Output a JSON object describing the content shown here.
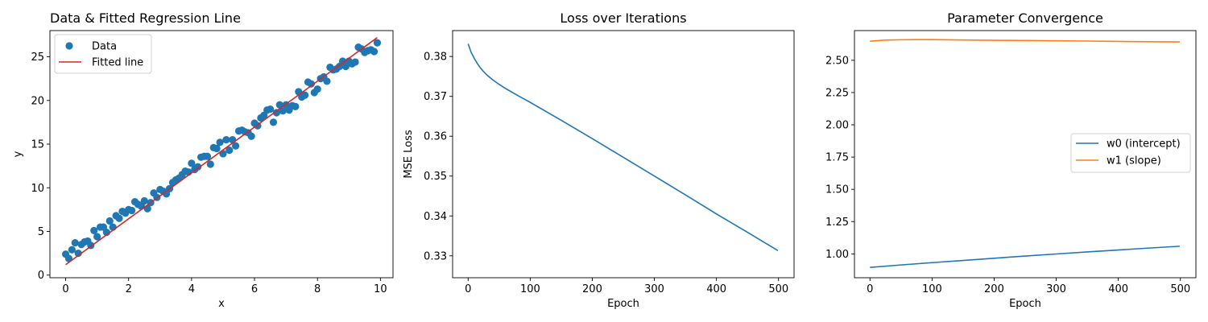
{
  "chart_data": [
    {
      "type": "scatter",
      "title": "Data & Fitted Regression Line",
      "xlabel": "x",
      "ylabel": "y",
      "xlim": [
        -0.5,
        10.4
      ],
      "ylim": [
        -0.3,
        28.0
      ],
      "xticks": [
        0,
        2,
        4,
        6,
        8,
        10
      ],
      "yticks": [
        0,
        5,
        10,
        15,
        20,
        25
      ],
      "legend_position": "upper-left",
      "colors": {
        "scatter": "#1f77b4",
        "line": "#d62728"
      },
      "series": [
        {
          "name": "Data",
          "kind": "scatter",
          "x": [
            0.0,
            0.1,
            0.2,
            0.3,
            0.4,
            0.5,
            0.6,
            0.7,
            0.8,
            0.9,
            1.0,
            1.1,
            1.2,
            1.3,
            1.4,
            1.5,
            1.6,
            1.7,
            1.8,
            1.9,
            2.0,
            2.1,
            2.2,
            2.3,
            2.4,
            2.5,
            2.6,
            2.7,
            2.8,
            2.9,
            3.0,
            3.1,
            3.2,
            3.3,
            3.4,
            3.5,
            3.6,
            3.7,
            3.8,
            3.9,
            4.0,
            4.1,
            4.2,
            4.3,
            4.4,
            4.5,
            4.6,
            4.7,
            4.8,
            4.9,
            5.0,
            5.1,
            5.2,
            5.3,
            5.4,
            5.5,
            5.6,
            5.7,
            5.8,
            5.9,
            6.0,
            6.1,
            6.2,
            6.3,
            6.4,
            6.5,
            6.6,
            6.7,
            6.8,
            6.9,
            7.0,
            7.1,
            7.2,
            7.3,
            7.4,
            7.5,
            7.6,
            7.7,
            7.8,
            7.9,
            8.0,
            8.1,
            8.2,
            8.3,
            8.4,
            8.5,
            8.6,
            8.7,
            8.8,
            8.9,
            9.0,
            9.1,
            9.2,
            9.3,
            9.4,
            9.5,
            9.6,
            9.7,
            9.8,
            9.9
          ],
          "y": [
            2.4,
            1.9,
            2.9,
            3.7,
            2.5,
            3.5,
            3.8,
            3.9,
            3.4,
            5.1,
            4.4,
            5.5,
            5.5,
            4.9,
            6.2,
            5.5,
            6.8,
            6.5,
            7.3,
            7.1,
            7.5,
            7.4,
            8.4,
            8.1,
            7.9,
            8.5,
            7.6,
            8.3,
            9.4,
            8.9,
            9.8,
            9.6,
            9.3,
            9.9,
            10.6,
            10.9,
            11.1,
            11.5,
            11.9,
            11.8,
            12.8,
            12.1,
            12.4,
            13.5,
            13.6,
            13.6,
            12.7,
            14.6,
            14.5,
            15.2,
            13.9,
            15.5,
            14.3,
            15.5,
            14.8,
            16.5,
            16.6,
            16.4,
            16.3,
            15.9,
            17.4,
            17.1,
            18.0,
            18.3,
            18.9,
            19.0,
            17.5,
            18.6,
            19.5,
            18.8,
            19.5,
            18.9,
            19.4,
            19.3,
            21.0,
            20.4,
            20.6,
            22.1,
            21.9,
            20.9,
            21.3,
            22.5,
            22.7,
            22.2,
            23.8,
            23.5,
            23.6,
            23.9,
            24.5,
            23.9,
            24.5,
            24.2,
            24.4,
            26.1,
            25.9,
            25.5,
            25.7,
            25.8,
            25.6,
            26.6
          ]
        },
        {
          "name": "Fitted line",
          "kind": "line",
          "x": [
            0.0,
            9.9
          ],
          "y": [
            1.2,
            27.2
          ]
        }
      ]
    },
    {
      "type": "line",
      "title": "Loss over Iterations",
      "xlabel": "Epoch",
      "ylabel": "MSE Loss",
      "xlim": [
        -25,
        525
      ],
      "ylim": [
        0.3245,
        0.3865
      ],
      "xticks": [
        0,
        100,
        200,
        300,
        400,
        500
      ],
      "yticks": [
        0.33,
        0.34,
        0.35,
        0.36,
        0.37,
        0.38
      ],
      "colors": {
        "line": "#1f77b4"
      },
      "series": [
        {
          "kind": "line",
          "x": [
            0,
            5,
            10,
            15,
            20,
            25,
            30,
            40,
            50,
            60,
            70,
            80,
            100,
            150,
            200,
            250,
            300,
            350,
            400,
            450,
            499
          ],
          "y": [
            0.3832,
            0.381,
            0.3795,
            0.3782,
            0.3771,
            0.3762,
            0.3754,
            0.3741,
            0.373,
            0.372,
            0.3711,
            0.3702,
            0.3685,
            0.364,
            0.3594,
            0.3547,
            0.35,
            0.3453,
            0.3405,
            0.3359,
            0.3313
          ]
        }
      ]
    },
    {
      "type": "line",
      "title": "Parameter Convergence",
      "xlabel": "Epoch",
      "ylabel": "",
      "xlim": [
        -25,
        525
      ],
      "ylim": [
        0.815,
        2.73
      ],
      "xticks": [
        0,
        100,
        200,
        300,
        400,
        500
      ],
      "yticks": [
        1.0,
        1.25,
        1.5,
        1.75,
        2.0,
        2.25,
        2.5
      ],
      "legend_position": "center-right",
      "colors": {
        "w0": "#1f77b4",
        "w1": "#ff7f0e"
      },
      "series": [
        {
          "name": "w0 (intercept)",
          "kind": "line",
          "x": [
            0,
            50,
            100,
            150,
            200,
            250,
            300,
            350,
            400,
            450,
            499
          ],
          "y": [
            0.895,
            0.914,
            0.932,
            0.949,
            0.966,
            0.983,
            0.999,
            1.015,
            1.03,
            1.045,
            1.059
          ]
        },
        {
          "name": "w1 (slope)",
          "kind": "line",
          "x": [
            0,
            25,
            50,
            75,
            100,
            150,
            200,
            250,
            300,
            350,
            400,
            450,
            499
          ],
          "y": [
            2.648,
            2.656,
            2.659,
            2.66,
            2.66,
            2.657,
            2.655,
            2.653,
            2.651,
            2.649,
            2.646,
            2.644,
            2.642
          ]
        }
      ]
    }
  ]
}
